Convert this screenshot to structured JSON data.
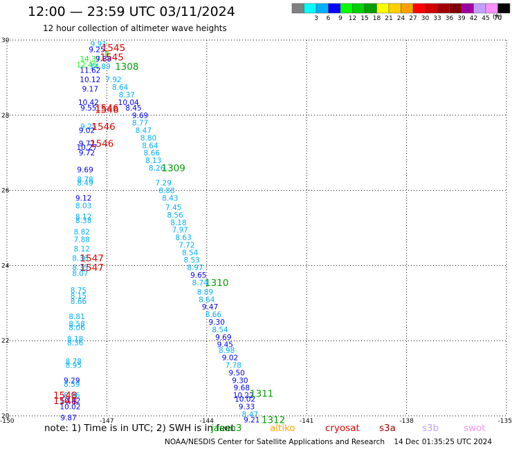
{
  "header": {
    "title": "12:00 — 23:59 UTC 03/11/2024",
    "subtitle": "12 hour collection of altimeter wave heights"
  },
  "color_legend": {
    "unit": "(ft)",
    "bins": [
      {
        "label": "",
        "color": "#808080"
      },
      {
        "label": "3",
        "color": "#00ffff"
      },
      {
        "label": "6",
        "color": "#00b0ff"
      },
      {
        "label": "9",
        "color": "#0000ff"
      },
      {
        "label": "12",
        "color": "#00ff00"
      },
      {
        "label": "15",
        "color": "#00d000"
      },
      {
        "label": "18",
        "color": "#00a000"
      },
      {
        "label": "21",
        "color": "#ffff00"
      },
      {
        "label": "24",
        "color": "#ffd000"
      },
      {
        "label": "27",
        "color": "#ffa000"
      },
      {
        "label": "30",
        "color": "#ff0000"
      },
      {
        "label": "33",
        "color": "#d00000"
      },
      {
        "label": "36",
        "color": "#a00000"
      },
      {
        "label": "39",
        "color": "#800000"
      },
      {
        "label": "42",
        "color": "#a000a0"
      },
      {
        "label": "45",
        "color": "#c0a0ff"
      },
      {
        "label": "70",
        "color": "#ff90ff"
      },
      {
        "label": "",
        "color": "#000000"
      }
    ]
  },
  "footer": {
    "note": "note:  1) Time is in UTC; 2) SWH is in feet",
    "credit": "NOAA/NESDIS Center for Satellite Applications and Research",
    "timestamp": "14 Dec 01:35:25 UTC 2024"
  },
  "satellites": [
    {
      "name": "jason3",
      "color": "#00a000"
    },
    {
      "name": "altiko",
      "color": "#ffa000"
    },
    {
      "name": "cryosat",
      "color": "#e00000"
    },
    {
      "name": "s3a",
      "color": "#a00000"
    },
    {
      "name": "s3b",
      "color": "#c0a0ff"
    },
    {
      "name": "swot",
      "color": "#ff90ff"
    }
  ],
  "chart_data": {
    "type": "scatter",
    "xlim": [
      -150,
      -135
    ],
    "ylim": [
      20,
      30
    ],
    "xticks": [
      -150,
      -147,
      -144,
      -141,
      -138,
      -135
    ],
    "yticks": [
      20,
      22,
      24,
      26,
      28,
      30
    ],
    "grid": true,
    "points": [
      {
        "x": -147.25,
        "y": 29.9,
        "v": "9.91",
        "c": "#00b0ff"
      },
      {
        "x": -147.3,
        "y": 29.75,
        "v": "9.25",
        "c": "#0000ff"
      },
      {
        "x": -147.0,
        "y": 29.65,
        "v": "8",
        "c": "#00ff00"
      },
      {
        "x": -147.5,
        "y": 29.5,
        "v": "14.37",
        "c": "#00ff00"
      },
      {
        "x": -147.1,
        "y": 29.5,
        "v": "9.88",
        "c": "#0000ff"
      },
      {
        "x": -147.6,
        "y": 29.35,
        "v": "12.46",
        "c": "#00ff00"
      },
      {
        "x": -147.2,
        "y": 29.3,
        "v": "14.89",
        "c": "#00b0ff"
      },
      {
        "x": -147.5,
        "y": 29.2,
        "v": "11.62",
        "c": "#0000ff"
      },
      {
        "x": -147.5,
        "y": 28.95,
        "v": "10.12",
        "c": "#0000ff"
      },
      {
        "x": -146.8,
        "y": 28.95,
        "v": "7.92",
        "c": "#00b0ff"
      },
      {
        "x": -146.6,
        "y": 28.75,
        "v": "8.64",
        "c": "#00b0ff"
      },
      {
        "x": -147.5,
        "y": 28.7,
        "v": "9.17",
        "c": "#0000ff"
      },
      {
        "x": -146.4,
        "y": 28.55,
        "v": "8.37",
        "c": "#00b0ff"
      },
      {
        "x": -146.35,
        "y": 28.35,
        "v": "10.04",
        "c": "#0000ff"
      },
      {
        "x": -147.55,
        "y": 28.35,
        "v": "10.42",
        "c": "#0000ff"
      },
      {
        "x": -147.55,
        "y": 28.2,
        "v": "9.55",
        "c": "#0000ff"
      },
      {
        "x": -146.2,
        "y": 28.2,
        "v": "8.45",
        "c": "#0000ff"
      },
      {
        "x": -146.0,
        "y": 28.0,
        "v": "9.69",
        "c": "#0000ff"
      },
      {
        "x": -146.0,
        "y": 27.8,
        "v": "8.77",
        "c": "#00b0ff"
      },
      {
        "x": -147.55,
        "y": 27.7,
        "v": "9.25",
        "c": "#00b0ff"
      },
      {
        "x": -145.9,
        "y": 27.6,
        "v": "8.47",
        "c": "#00b0ff"
      },
      {
        "x": -147.6,
        "y": 27.6,
        "v": "9.02",
        "c": "#0000ff"
      },
      {
        "x": -145.75,
        "y": 27.4,
        "v": "8.80",
        "c": "#00b0ff"
      },
      {
        "x": -147.6,
        "y": 27.25,
        "v": "9.72",
        "c": "#0000ff"
      },
      {
        "x": -145.7,
        "y": 27.2,
        "v": "8.64",
        "c": "#00b0ff"
      },
      {
        "x": -147.6,
        "y": 27.15,
        "v": "10.27",
        "c": "#0000ff"
      },
      {
        "x": -145.65,
        "y": 27.0,
        "v": "8.66",
        "c": "#00b0ff"
      },
      {
        "x": -147.6,
        "y": 27.0,
        "v": "9.72",
        "c": "#0000ff"
      },
      {
        "x": -145.6,
        "y": 26.8,
        "v": "8.13",
        "c": "#00b0ff"
      },
      {
        "x": -145.5,
        "y": 26.6,
        "v": "8.26",
        "c": "#00b0ff"
      },
      {
        "x": -147.65,
        "y": 26.55,
        "v": "9.69",
        "c": "#0000ff"
      },
      {
        "x": -147.65,
        "y": 26.3,
        "v": "8.78",
        "c": "#00b0ff"
      },
      {
        "x": -147.65,
        "y": 26.2,
        "v": "8.49",
        "c": "#00b0ff"
      },
      {
        "x": -145.3,
        "y": 26.2,
        "v": "7.29",
        "c": "#00b0ff"
      },
      {
        "x": -145.2,
        "y": 26.0,
        "v": "8.88",
        "c": "#00b0ff"
      },
      {
        "x": -145.1,
        "y": 25.8,
        "v": "8.43",
        "c": "#00b0ff"
      },
      {
        "x": -147.7,
        "y": 25.8,
        "v": "9.12",
        "c": "#0000ff"
      },
      {
        "x": -147.7,
        "y": 25.6,
        "v": "8.03",
        "c": "#00b0ff"
      },
      {
        "x": -145.0,
        "y": 25.55,
        "v": "7.45",
        "c": "#00b0ff"
      },
      {
        "x": -144.95,
        "y": 25.35,
        "v": "8.56",
        "c": "#00b0ff"
      },
      {
        "x": -147.7,
        "y": 25.3,
        "v": "8.12",
        "c": "#00b0ff"
      },
      {
        "x": -147.7,
        "y": 25.2,
        "v": "8.38",
        "c": "#00b0ff"
      },
      {
        "x": -144.85,
        "y": 25.15,
        "v": "8.18",
        "c": "#00b0ff"
      },
      {
        "x": -144.8,
        "y": 24.95,
        "v": "7.97",
        "c": "#00b0ff"
      },
      {
        "x": -147.75,
        "y": 24.9,
        "v": "8.82",
        "c": "#00b0ff"
      },
      {
        "x": -144.7,
        "y": 24.75,
        "v": "8.63",
        "c": "#00b0ff"
      },
      {
        "x": -147.75,
        "y": 24.7,
        "v": "7.88",
        "c": "#00b0ff"
      },
      {
        "x": -144.6,
        "y": 24.55,
        "v": "7.72",
        "c": "#00b0ff"
      },
      {
        "x": -147.75,
        "y": 24.45,
        "v": "8.12",
        "c": "#00b0ff"
      },
      {
        "x": -144.5,
        "y": 24.35,
        "v": "8.54",
        "c": "#00b0ff"
      },
      {
        "x": -147.8,
        "y": 24.2,
        "v": "8.36",
        "c": "#00b0ff"
      },
      {
        "x": -144.45,
        "y": 24.15,
        "v": "8.53",
        "c": "#00b0ff"
      },
      {
        "x": -144.35,
        "y": 23.95,
        "v": "8.97",
        "c": "#00b0ff"
      },
      {
        "x": -147.8,
        "y": 23.95,
        "v": "8.35",
        "c": "#00b0ff"
      },
      {
        "x": -147.8,
        "y": 23.8,
        "v": "8.07",
        "c": "#00b0ff"
      },
      {
        "x": -144.25,
        "y": 23.75,
        "v": "9.65",
        "c": "#0000ff"
      },
      {
        "x": -144.2,
        "y": 23.55,
        "v": "8.74",
        "c": "#00b0ff"
      },
      {
        "x": -147.85,
        "y": 23.35,
        "v": "8.75",
        "c": "#00b0ff"
      },
      {
        "x": -144.05,
        "y": 23.3,
        "v": "8.89",
        "c": "#00b0ff"
      },
      {
        "x": -147.85,
        "y": 23.2,
        "v": "8.15",
        "c": "#00b0ff"
      },
      {
        "x": -144.0,
        "y": 23.1,
        "v": "8.64",
        "c": "#00b0ff"
      },
      {
        "x": -147.85,
        "y": 23.05,
        "v": "8.66",
        "c": "#00b0ff"
      },
      {
        "x": -143.9,
        "y": 22.9,
        "v": "9.47",
        "c": "#0000ff"
      },
      {
        "x": -143.8,
        "y": 22.7,
        "v": "8.66",
        "c": "#00b0ff"
      },
      {
        "x": -147.9,
        "y": 22.65,
        "v": "8.81",
        "c": "#00b0ff"
      },
      {
        "x": -143.7,
        "y": 22.5,
        "v": "9.30",
        "c": "#0000ff"
      },
      {
        "x": -147.9,
        "y": 22.45,
        "v": "8.58",
        "c": "#00b0ff"
      },
      {
        "x": -147.9,
        "y": 22.35,
        "v": "8.06",
        "c": "#00b0ff"
      },
      {
        "x": -143.6,
        "y": 22.3,
        "v": "8.54",
        "c": "#00b0ff"
      },
      {
        "x": -143.5,
        "y": 22.1,
        "v": "9.69",
        "c": "#0000ff"
      },
      {
        "x": -147.95,
        "y": 22.05,
        "v": "8.18",
        "c": "#00b0ff"
      },
      {
        "x": -147.95,
        "y": 21.95,
        "v": "8.36",
        "c": "#00b0ff"
      },
      {
        "x": -143.45,
        "y": 21.9,
        "v": "9.45",
        "c": "#0000ff"
      },
      {
        "x": -143.4,
        "y": 21.75,
        "v": "8.98",
        "c": "#00b0ff"
      },
      {
        "x": -143.3,
        "y": 21.55,
        "v": "9.02",
        "c": "#0000ff"
      },
      {
        "x": -148.0,
        "y": 21.45,
        "v": "8.78",
        "c": "#00b0ff"
      },
      {
        "x": -143.2,
        "y": 21.35,
        "v": "7.78",
        "c": "#00b0ff"
      },
      {
        "x": -148.0,
        "y": 21.35,
        "v": "8.95",
        "c": "#00b0ff"
      },
      {
        "x": -143.1,
        "y": 21.15,
        "v": "9.50",
        "c": "#0000ff"
      },
      {
        "x": -148.05,
        "y": 20.95,
        "v": "9.29",
        "c": "#0000ff"
      },
      {
        "x": -143.0,
        "y": 20.95,
        "v": "9.30",
        "c": "#0000ff"
      },
      {
        "x": -148.05,
        "y": 20.85,
        "v": "8.59",
        "c": "#00b0ff"
      },
      {
        "x": -142.95,
        "y": 20.75,
        "v": "9.68",
        "c": "#0000ff"
      },
      {
        "x": -142.9,
        "y": 20.55,
        "v": "10.22",
        "c": "#0000ff"
      },
      {
        "x": -148.05,
        "y": 20.55,
        "v": "8.96",
        "c": "#00b0ff"
      },
      {
        "x": -142.85,
        "y": 20.45,
        "v": "10.02",
        "c": "#0000ff"
      },
      {
        "x": -148.1,
        "y": 20.4,
        "v": "10.42",
        "c": "#0000ff"
      },
      {
        "x": -142.8,
        "y": 20.25,
        "v": "9.33",
        "c": "#0000ff"
      },
      {
        "x": -148.1,
        "y": 20.25,
        "v": "10.02",
        "c": "#0000ff"
      },
      {
        "x": -142.7,
        "y": 20.05,
        "v": "8.47",
        "c": "#00b0ff"
      },
      {
        "x": -148.15,
        "y": 19.95,
        "v": "9.87",
        "c": "#0000ff"
      },
      {
        "x": -142.65,
        "y": 19.9,
        "v": "9.21",
        "c": "#0000ff"
      }
    ],
    "pass_labels": [
      {
        "x": -146.8,
        "y": 29.8,
        "t": "1545",
        "c": "#e00000"
      },
      {
        "x": -146.85,
        "y": 29.55,
        "t": "1545",
        "c": "#e00000"
      },
      {
        "x": -146.4,
        "y": 29.3,
        "t": "1308",
        "c": "#00a000"
      },
      {
        "x": -147.0,
        "y": 28.2,
        "t": "1546",
        "c": "#e00000"
      },
      {
        "x": -147.0,
        "y": 28.15,
        "t": "1546",
        "c": "#e00000"
      },
      {
        "x": -147.1,
        "y": 27.7,
        "t": "1546",
        "c": "#e00000"
      },
      {
        "x": -147.15,
        "y": 27.25,
        "t": "1546",
        "c": "#e00000"
      },
      {
        "x": -145.0,
        "y": 26.6,
        "t": "1309",
        "c": "#00a000"
      },
      {
        "x": -147.45,
        "y": 24.2,
        "t": "1547",
        "c": "#e00000"
      },
      {
        "x": -147.45,
        "y": 23.95,
        "t": "1547",
        "c": "#e00000"
      },
      {
        "x": -143.7,
        "y": 23.55,
        "t": "1310",
        "c": "#00a000"
      },
      {
        "x": -148.25,
        "y": 20.55,
        "t": "1548",
        "c": "#e00000"
      },
      {
        "x": -148.25,
        "y": 20.4,
        "t": "1548",
        "c": "#e00000"
      },
      {
        "x": -142.35,
        "y": 20.6,
        "t": "1311",
        "c": "#00a000"
      },
      {
        "x": -142.0,
        "y": 19.9,
        "t": "1312",
        "c": "#00a000"
      }
    ]
  }
}
